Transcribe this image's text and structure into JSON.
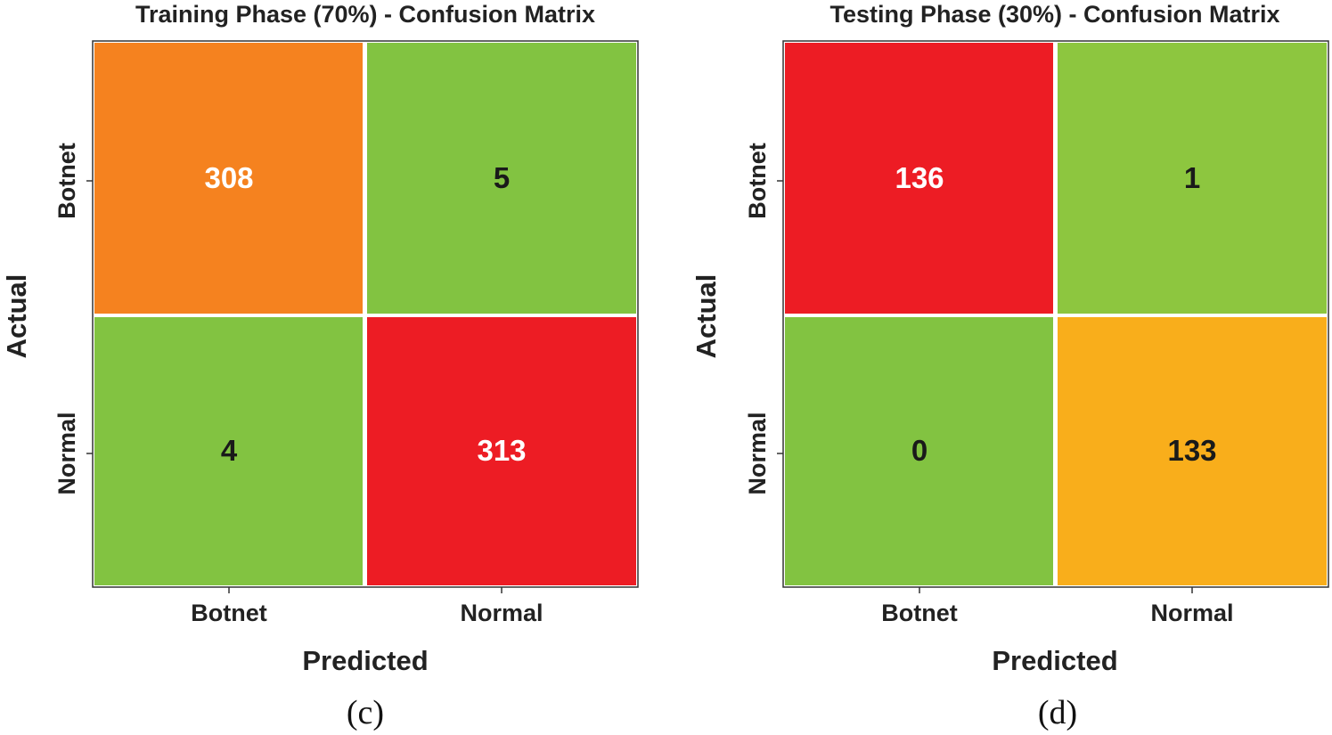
{
  "chart_data": [
    {
      "type": "heatmap",
      "title": "Training Phase (70%) - Confusion Matrix",
      "xlabel": "Predicted",
      "ylabel": "Actual",
      "x_categories": [
        "Botnet",
        "Normal"
      ],
      "y_categories": [
        "Botnet",
        "Normal"
      ],
      "values": [
        [
          308,
          5
        ],
        [
          4,
          313
        ]
      ],
      "cell_colors": [
        [
          "#F5821F",
          "#82C341"
        ],
        [
          "#82C341",
          "#ED1C24"
        ]
      ],
      "text_colors": [
        [
          "#ffffff",
          "#1a1a1a"
        ],
        [
          "#1a1a1a",
          "#ffffff"
        ]
      ],
      "caption": "(c)"
    },
    {
      "type": "heatmap",
      "title": "Testing Phase (30%) - Confusion Matrix",
      "xlabel": "Predicted",
      "ylabel": "Actual",
      "x_categories": [
        "Botnet",
        "Normal"
      ],
      "y_categories": [
        "Botnet",
        "Normal"
      ],
      "values": [
        [
          136,
          1
        ],
        [
          0,
          133
        ]
      ],
      "cell_colors": [
        [
          "#ED1C24",
          "#8DC63F"
        ],
        [
          "#82C341",
          "#F9AE1B"
        ]
      ],
      "text_colors": [
        [
          "#ffffff",
          "#1a1a1a"
        ],
        [
          "#1a1a1a",
          "#1a1a1a"
        ]
      ],
      "caption": "(d)"
    }
  ]
}
